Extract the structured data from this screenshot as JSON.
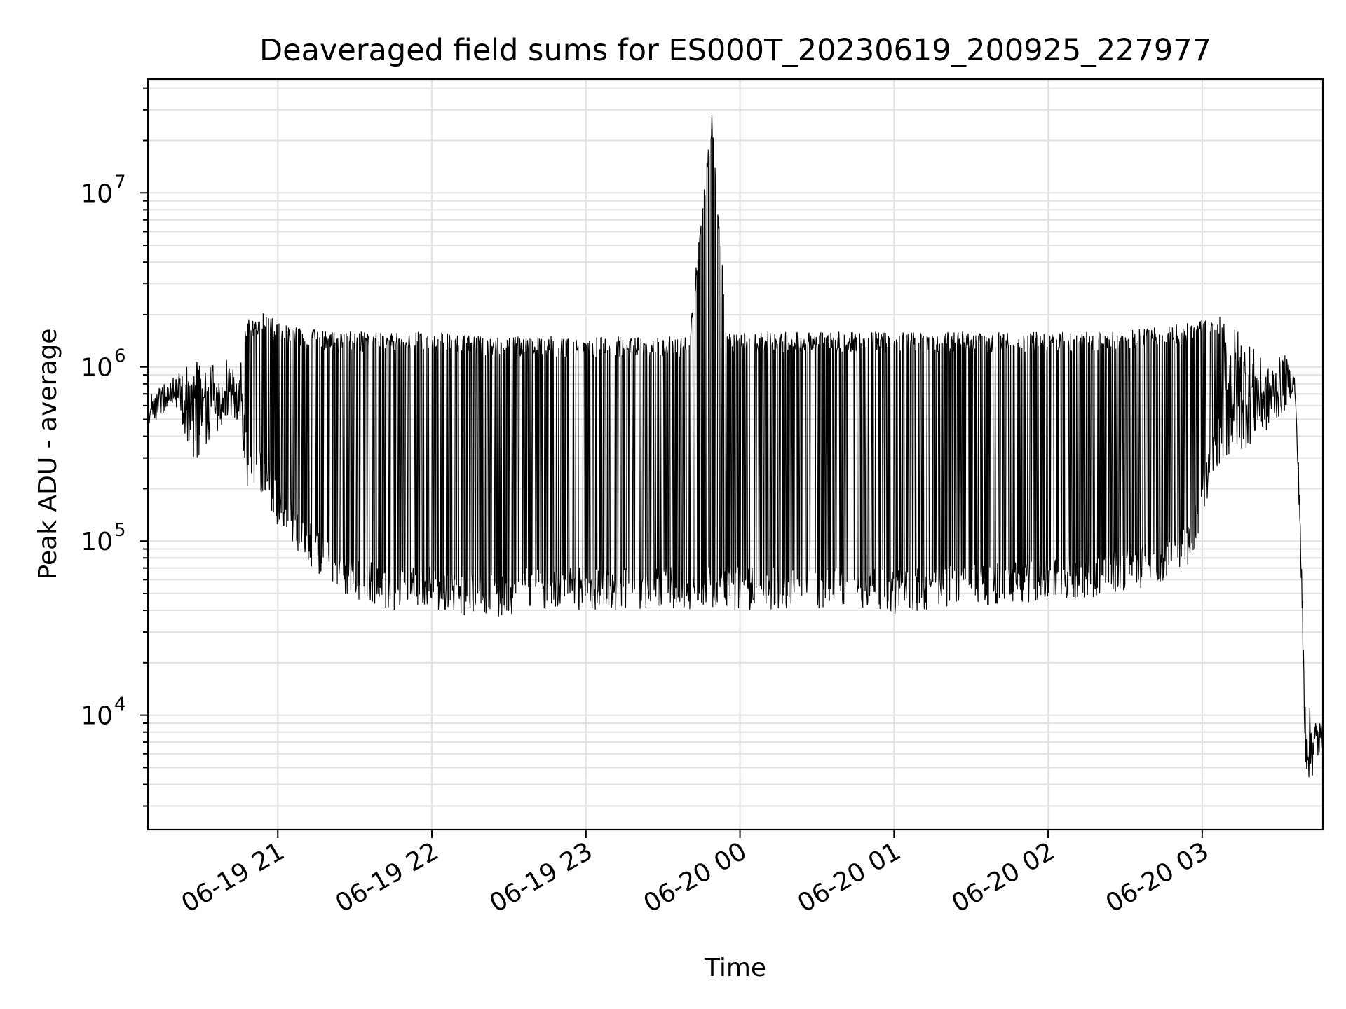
{
  "chart_data": {
    "type": "line",
    "title": "Deaveraged field sums for ES000T_20230619_200925_227977",
    "xlabel": "Time",
    "ylabel": "Peak ADU - average",
    "yscale": "log",
    "grid": true,
    "xlim": [
      "2023-06-19 20:09:25",
      "2023-06-20 03:47:00"
    ],
    "ylim": [
      2200,
      45000000
    ],
    "x_ticks": [
      {
        "value": "2023-06-19 21:00",
        "label": "06-19 21"
      },
      {
        "value": "2023-06-19 22:00",
        "label": "06-19 22"
      },
      {
        "value": "2023-06-19 23:00",
        "label": "06-19 23"
      },
      {
        "value": "2023-06-20 00:00",
        "label": "06-20 00"
      },
      {
        "value": "2023-06-20 01:00",
        "label": "06-20 01"
      },
      {
        "value": "2023-06-20 02:00",
        "label": "06-20 02"
      },
      {
        "value": "2023-06-20 03:00",
        "label": "06-20 03"
      }
    ],
    "y_ticks": [
      {
        "value": 10000,
        "base": "10",
        "exp": "4"
      },
      {
        "value": 100000,
        "base": "10",
        "exp": "5"
      },
      {
        "value": 1000000,
        "base": "10",
        "exp": "6"
      },
      {
        "value": 10000000,
        "base": "10",
        "exp": "7"
      }
    ],
    "color": "#000000",
    "series": [
      {
        "x": [
          "2023-06-19 20:09:25",
          "2023-06-19 20:20",
          "2023-06-19 20:28",
          "2023-06-19 20:32",
          "2023-06-19 20:40",
          "2023-06-19 20:45",
          "2023-06-19 20:48",
          "2023-06-19 20:55",
          "2023-06-19 21:00",
          "2023-06-19 21:10",
          "2023-06-19 21:20",
          "2023-06-19 21:30",
          "2023-06-19 21:45",
          "2023-06-19 22:00",
          "2023-06-19 22:20",
          "2023-06-19 22:40",
          "2023-06-19 23:00",
          "2023-06-19 23:20",
          "2023-06-19 23:40",
          "2023-06-19 23:49",
          "2023-06-19 23:55",
          "2023-06-20 00:00",
          "2023-06-20 00:30",
          "2023-06-20 00:50",
          "2023-06-20 01:00",
          "2023-06-20 01:30",
          "2023-06-20 02:00",
          "2023-06-20 02:20",
          "2023-06-20 02:40",
          "2023-06-20 02:55",
          "2023-06-20 03:05",
          "2023-06-20 03:15",
          "2023-06-20 03:25",
          "2023-06-20 03:32",
          "2023-06-20 03:36",
          "2023-06-20 03:38",
          "2023-06-20 03:40",
          "2023-06-20 03:42",
          "2023-06-20 03:47"
        ],
        "upper": [
          700000,
          900000,
          1200000,
          1000000,
          1100000,
          1000000,
          1900000,
          2100000,
          1800000,
          1700000,
          1600000,
          1600000,
          1600000,
          1600000,
          1500000,
          1500000,
          1500000,
          1500000,
          1500000,
          28000000,
          1600000,
          1600000,
          1600000,
          1600000,
          1600000,
          1600000,
          1600000,
          1600000,
          1700000,
          1800000,
          2000000,
          1700000,
          1000000,
          1200000,
          900000,
          200000,
          14000,
          11000,
          9000
        ],
        "lower": [
          450000,
          600000,
          250000,
          350000,
          500000,
          450000,
          200000,
          180000,
          120000,
          80000,
          55000,
          45000,
          40000,
          40000,
          35000,
          40000,
          40000,
          40000,
          40000,
          40000,
          40000,
          40000,
          40000,
          40000,
          38000,
          42000,
          45000,
          48000,
          55000,
          70000,
          250000,
          320000,
          420000,
          550000,
          750000,
          120000,
          5000,
          4000,
          6500
        ]
      }
    ]
  }
}
